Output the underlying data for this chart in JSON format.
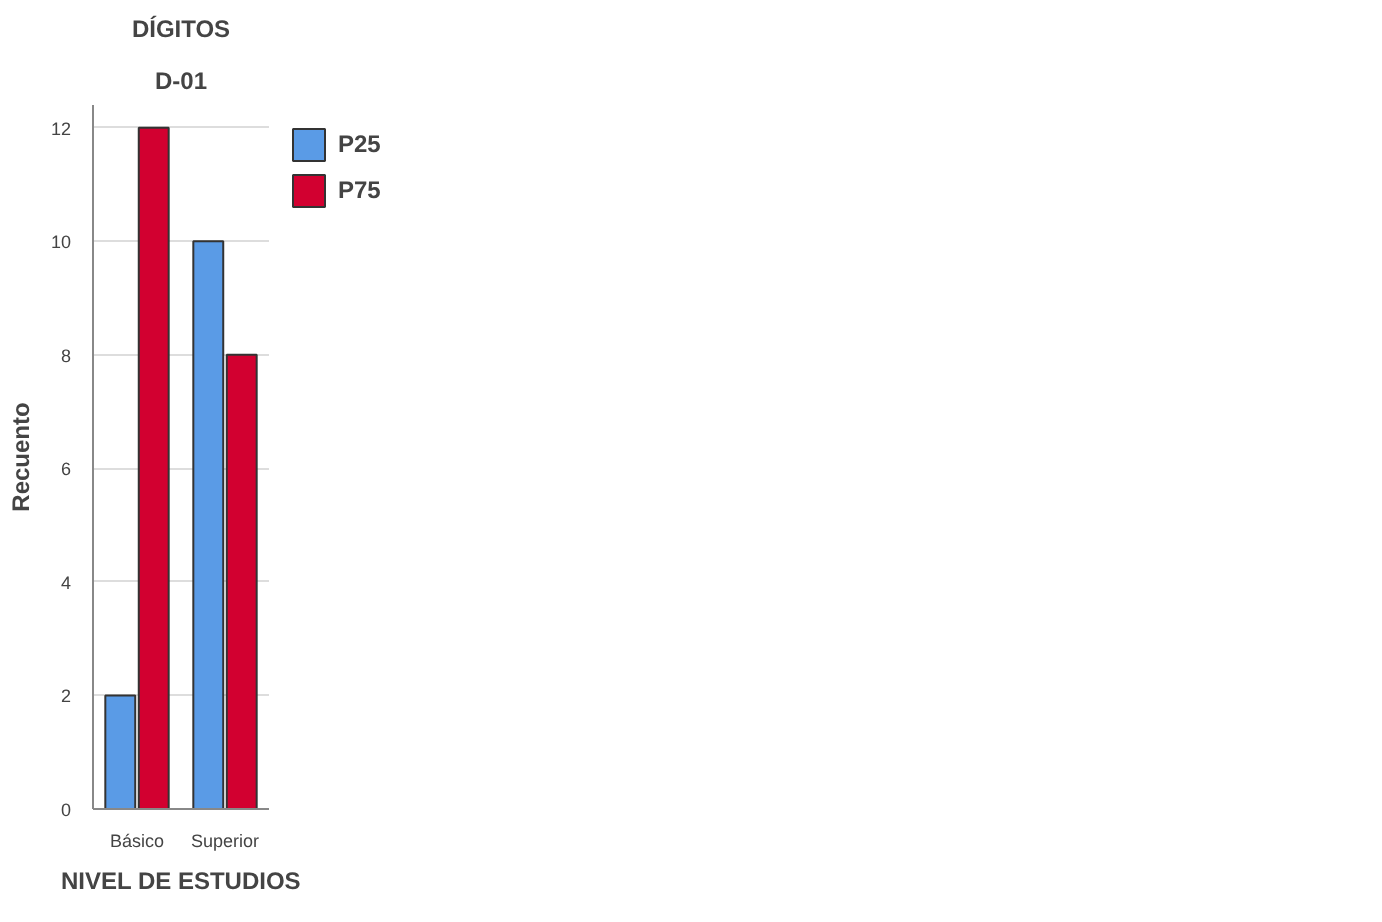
{
  "chart_data": {
    "type": "bar",
    "title": "DÍGITOS",
    "subtitle": "D-01",
    "xlabel": "NIVEL DE ESTUDIOS",
    "ylabel": "Recuento",
    "categories": [
      "Básico",
      "Superior"
    ],
    "series": [
      {
        "name": "P25",
        "color": "#5a9be6",
        "values": [
          2,
          10
        ]
      },
      {
        "name": "P75",
        "color": "#d20030",
        "values": [
          12,
          8
        ]
      }
    ],
    "ylim": [
      0,
      12.4
    ],
    "yticks": [
      0,
      2,
      4,
      6,
      8,
      10,
      12
    ],
    "grid": "y",
    "legend": "top right"
  }
}
